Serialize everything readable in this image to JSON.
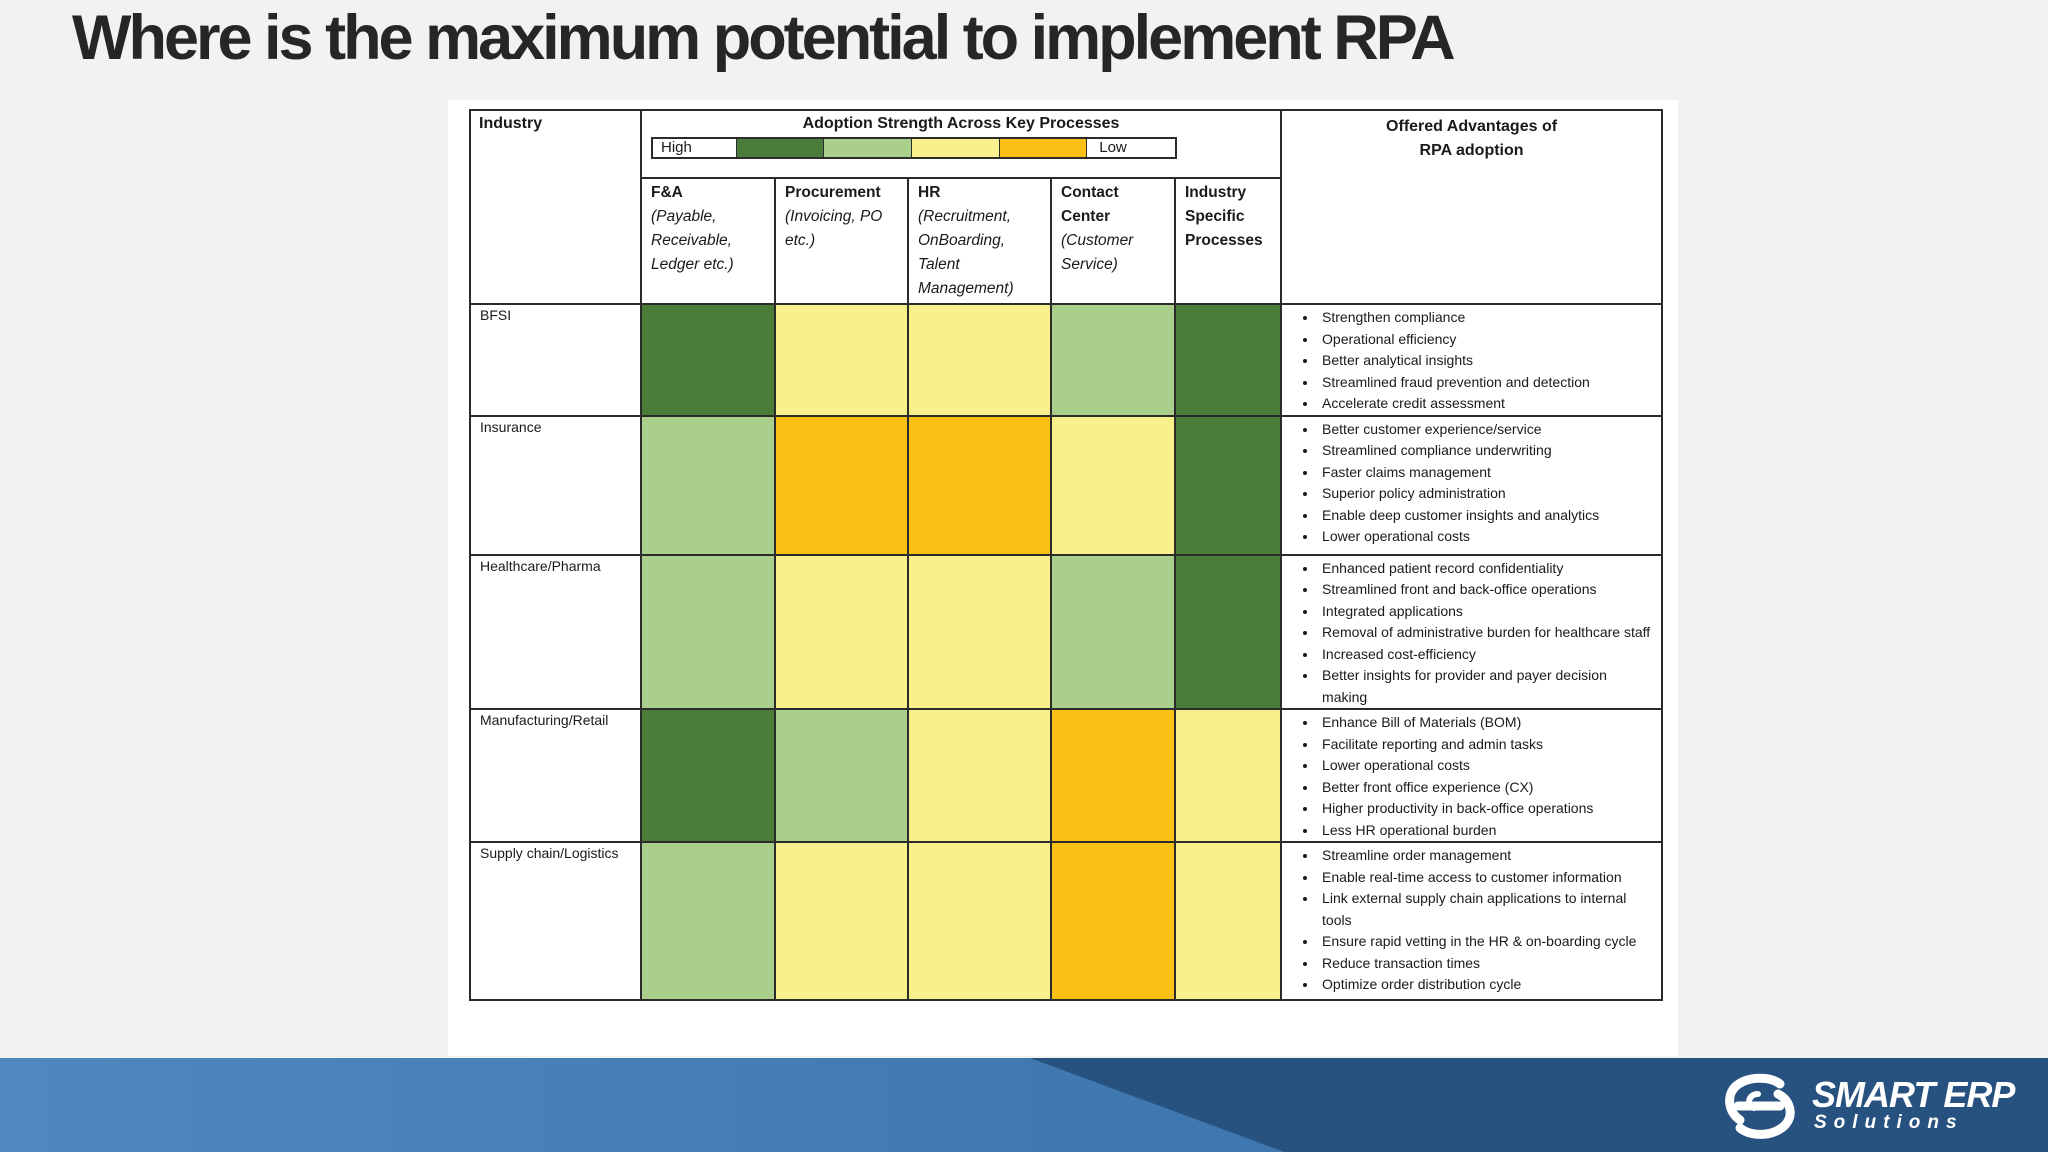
{
  "slide": {
    "title": "Where is the maximum potential to implement RPA"
  },
  "table": {
    "industry_header": "Industry",
    "adoption_header": "Adoption Strength Across Key Processes",
    "legend": {
      "high": "High",
      "low": "Low",
      "scale_colors": [
        "#4a7c3a",
        "#a9cf8a",
        "#f7f08b",
        "#f9c113"
      ]
    },
    "advantages_header_line1": "Offered Advantages of",
    "advantages_header_line2": "RPA adoption",
    "columns": [
      {
        "title": "F&A",
        "sub": "(Payable, Receivable, Ledger etc.)"
      },
      {
        "title": "Procurement",
        "sub": "(Invoicing, PO etc.)"
      },
      {
        "title": "HR",
        "sub": "(Recruitment, OnBoarding, Talent Management)"
      },
      {
        "title": "Contact Center",
        "sub": "(Customer Service)"
      },
      {
        "title": "Industry Specific Processes",
        "sub": ""
      }
    ],
    "rows": [
      {
        "industry": "BFSI",
        "levels": [
          "high",
          "medium-low",
          "medium-low",
          "medium-high",
          "high"
        ],
        "advantages": [
          "Strengthen compliance",
          "Operational efficiency",
          "Better analytical insights",
          "Streamlined fraud prevention and detection",
          "Accelerate credit assessment"
        ]
      },
      {
        "industry": "Insurance",
        "levels": [
          "medium-high",
          "low",
          "low",
          "medium-low",
          "high"
        ],
        "advantages": [
          "Better customer experience/service",
          "Streamlined compliance underwriting",
          "Faster claims management",
          "Superior policy administration",
          "Enable deep customer insights and analytics",
          "Lower operational costs"
        ]
      },
      {
        "industry": "Healthcare/Pharma",
        "levels": [
          "medium-high",
          "medium-low",
          "medium-low",
          "medium-high",
          "high"
        ],
        "advantages": [
          "Enhanced patient record confidentiality",
          "Streamlined front and back-office operations",
          "Integrated applications",
          "Removal of administrative burden for healthcare staff",
          "Increased cost-efficiency",
          "Better insights for provider and payer decision making"
        ]
      },
      {
        "industry": "Manufacturing/Retail",
        "levels": [
          "high",
          "medium-high",
          "medium-low",
          "low",
          "medium-low"
        ],
        "advantages": [
          "Enhance Bill of Materials (BOM)",
          "Facilitate reporting and admin tasks",
          "Lower operational costs",
          "Better front office experience (CX)",
          "Higher productivity in back-office operations",
          "Less HR operational burden"
        ]
      },
      {
        "industry": "Supply chain/Logistics",
        "levels": [
          "medium-high",
          "medium-low",
          "medium-low",
          "low",
          "medium-low"
        ],
        "advantages": [
          "Streamline order management",
          "Enable real-time access to customer information",
          "Link external supply chain applications to internal tools",
          "Ensure rapid vetting in the HR & on-boarding cycle",
          "Reduce transaction times",
          "Optimize order distribution cycle"
        ]
      }
    ]
  },
  "level_colors": {
    "high": "#4a7c3a",
    "medium-high": "#a9cf8a",
    "medium-low": "#f7f08b",
    "low": "#f9c113"
  },
  "logo": {
    "line1": "SMART ERP",
    "line2": "Solutions",
    "mark_icon": "smart-erp-swirl-icon"
  },
  "colors": {
    "footer_blue": "#4f88be",
    "footer_dark": "#27527f",
    "title_text": "#262626"
  }
}
